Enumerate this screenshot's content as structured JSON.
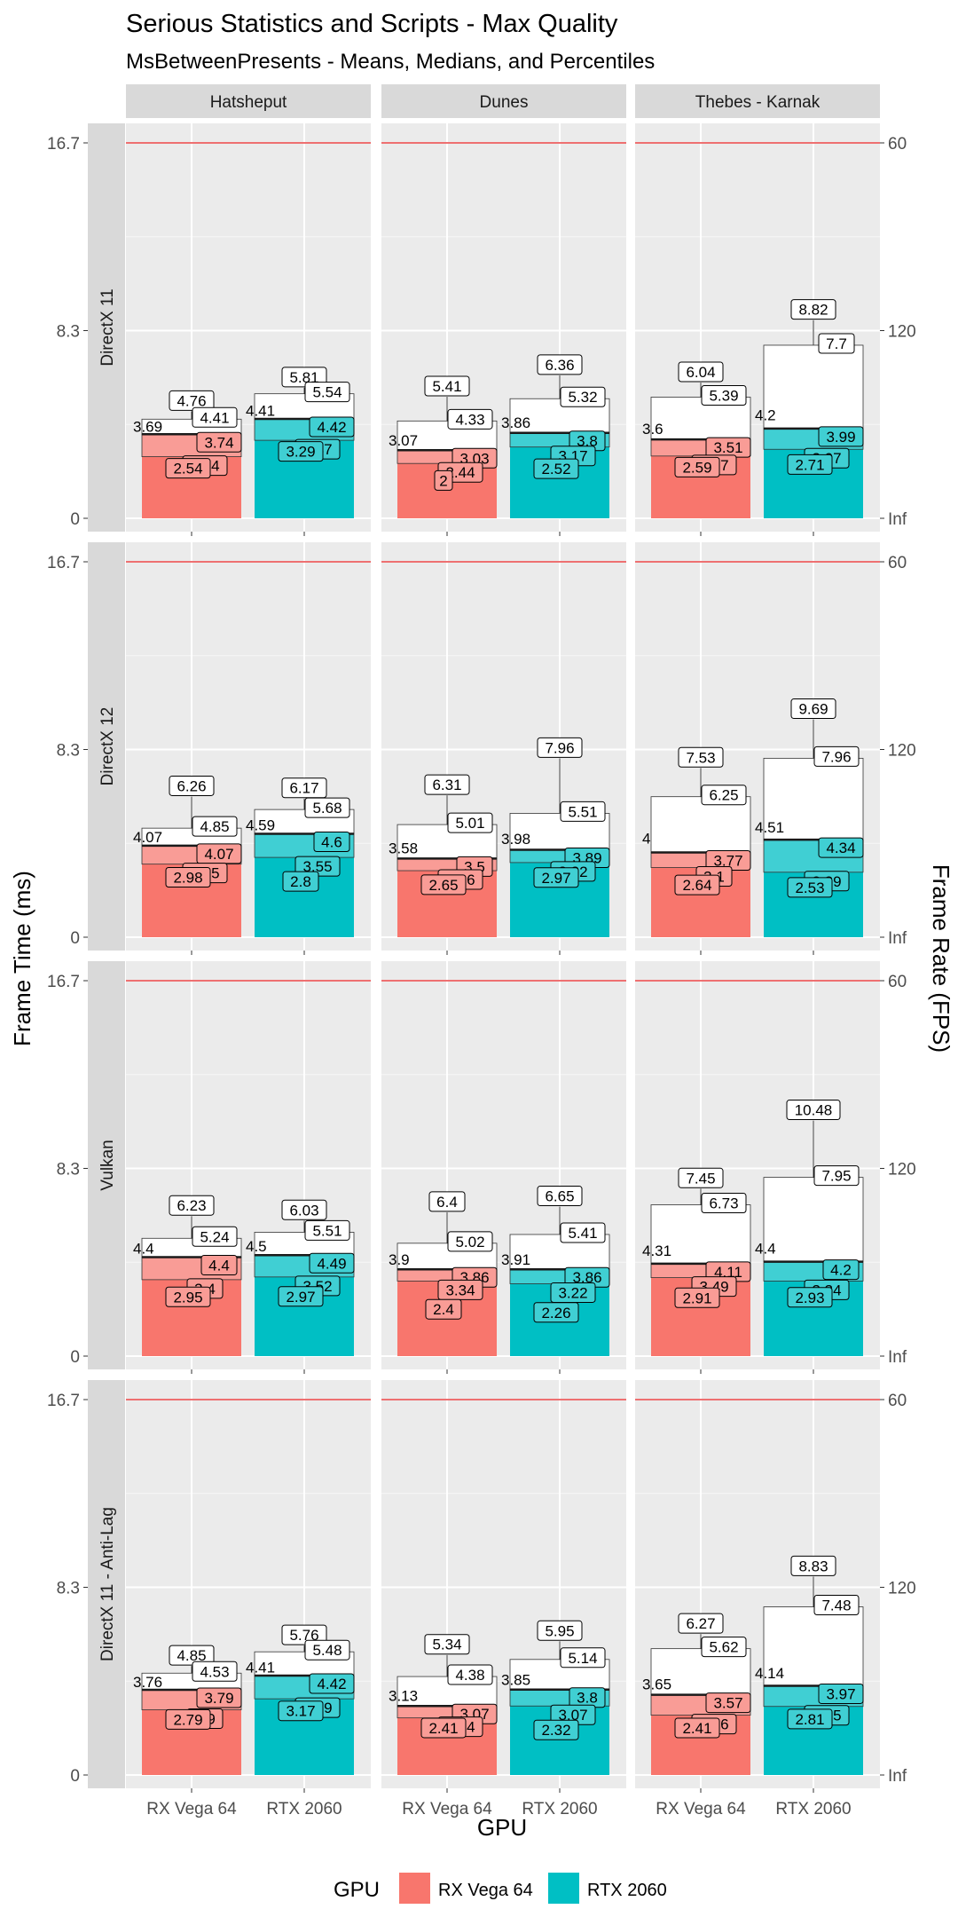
{
  "title": "Serious Statistics and Scripts - Max Quality",
  "subtitle": "MsBetweenPresents - Means, Medians, and Percentiles",
  "chart_data": {
    "type": "bar",
    "facet_columns": [
      "Hatsheput",
      "Dunes",
      "Thebes - Karnak"
    ],
    "facet_rows": [
      "DirectX 11",
      "DirectX 12",
      "Vulkan",
      "DirectX 11 - Anti-Lag"
    ],
    "categories": [
      "RX Vega 64",
      "RTX 2060"
    ],
    "xlabel": "GPU",
    "ylabel": "Frame Time (ms)",
    "y2label": "Frame Rate (FPS)",
    "ylim": [
      0,
      16.7
    ],
    "y_ticks": [
      "0",
      "8.3",
      "16.7"
    ],
    "y2_ticks": [
      "Inf",
      "120",
      "60"
    ],
    "reference_line": 16.7,
    "legend": {
      "title": "GPU",
      "position": "bottom",
      "entries": [
        {
          "name": "RX Vega 64",
          "color": "#F8766D"
        },
        {
          "name": "RTX 2060",
          "color": "#00BFC4"
        }
      ]
    },
    "panels": [
      {
        "row": "DirectX 11",
        "column": "Hatsheput",
        "bars": [
          {
            "gpu": "RX Vega 64",
            "mean": 3.69,
            "median": 3.74,
            "p_low": 2.54,
            "box_low": 2.74,
            "box_high": 4.41,
            "whisker_high": 4.76
          },
          {
            "gpu": "RTX 2060",
            "mean": 4.41,
            "median": 4.42,
            "p_low": 3.29,
            "box_low": 3.47,
            "box_high": 5.54,
            "whisker_high": 5.81
          }
        ]
      },
      {
        "row": "DirectX 11",
        "column": "Dunes",
        "bars": [
          {
            "gpu": "RX Vega 64",
            "mean": 3.07,
            "median": 3.03,
            "p_low": 2,
            "box_low": 2.44,
            "box_high": 4.33,
            "whisker_high": 5.41
          },
          {
            "gpu": "RTX 2060",
            "mean": 3.86,
            "median": 3.8,
            "p_low": 2.52,
            "box_low": 3.17,
            "box_high": 5.32,
            "whisker_high": 6.36
          }
        ]
      },
      {
        "row": "DirectX 11",
        "column": "Thebes - Karnak",
        "bars": [
          {
            "gpu": "RX Vega 64",
            "mean": 3.6,
            "median": 3.51,
            "p_low": 2.59,
            "box_low": 2.77,
            "box_high": 5.39,
            "whisker_high": 6.04
          },
          {
            "gpu": "RTX 2060",
            "mean": 4.2,
            "median": 3.99,
            "p_low": 2.71,
            "box_low": 3.07,
            "box_high": 7.7,
            "whisker_high": 8.82
          }
        ]
      },
      {
        "row": "DirectX 12",
        "column": "Hatsheput",
        "bars": [
          {
            "gpu": "RX Vega 64",
            "mean": 4.07,
            "median": 4.07,
            "p_low": 2.98,
            "box_low": 3.25,
            "box_high": 4.85,
            "whisker_high": 6.26
          },
          {
            "gpu": "RTX 2060",
            "mean": 4.59,
            "median": 4.6,
            "p_low": 2.8,
            "box_low": 3.55,
            "box_high": 5.68,
            "whisker_high": 6.17
          }
        ]
      },
      {
        "row": "DirectX 12",
        "column": "Dunes",
        "bars": [
          {
            "gpu": "RX Vega 64",
            "mean": 3.58,
            "median": 3.5,
            "p_low": 2.65,
            "box_low": 2.96,
            "box_high": 5.01,
            "whisker_high": 6.31
          },
          {
            "gpu": "RTX 2060",
            "mean": 3.98,
            "median": 3.89,
            "p_low": 2.97,
            "box_low": 3.32,
            "box_high": 5.51,
            "whisker_high": 7.96
          }
        ]
      },
      {
        "row": "DirectX 12",
        "column": "Thebes - Karnak",
        "bars": [
          {
            "gpu": "RX Vega 64",
            "mean": 4,
            "median": 3.77,
            "p_low": 2.64,
            "box_low": 3.1,
            "box_high": 6.25,
            "whisker_high": 7.53
          },
          {
            "gpu": "RTX 2060",
            "mean": 4.51,
            "median": 4.34,
            "p_low": 2.53,
            "box_low": 2.89,
            "box_high": 7.96,
            "whisker_high": 9.69
          }
        ]
      },
      {
        "row": "Vulkan",
        "column": "Hatsheput",
        "bars": [
          {
            "gpu": "RX Vega 64",
            "mean": 4.4,
            "median": 4.4,
            "p_low": 2.95,
            "box_low": 3.4,
            "box_high": 5.24,
            "whisker_high": 6.23
          },
          {
            "gpu": "RTX 2060",
            "mean": 4.5,
            "median": 4.49,
            "p_low": 2.97,
            "box_low": 3.52,
            "box_high": 5.51,
            "whisker_high": 6.03
          }
        ]
      },
      {
        "row": "Vulkan",
        "column": "Dunes",
        "bars": [
          {
            "gpu": "RX Vega 64",
            "mean": 3.9,
            "median": 3.86,
            "p_low": 2.4,
            "box_low": 3.34,
            "box_high": 5.02,
            "whisker_high": 6.4
          },
          {
            "gpu": "RTX 2060",
            "mean": 3.91,
            "median": 3.86,
            "p_low": 2.26,
            "box_low": 3.22,
            "box_high": 5.41,
            "whisker_high": 6.65
          }
        ]
      },
      {
        "row": "Vulkan",
        "column": "Thebes - Karnak",
        "bars": [
          {
            "gpu": "RX Vega 64",
            "mean": 4.31,
            "median": 4.11,
            "p_low": 2.91,
            "box_low": 3.49,
            "box_high": 6.73,
            "whisker_high": 7.45
          },
          {
            "gpu": "RTX 2060",
            "mean": 4.4,
            "median": 4.2,
            "p_low": 2.93,
            "box_low": 3.34,
            "box_high": 7.95,
            "whisker_high": 10.48
          }
        ]
      },
      {
        "row": "DirectX 11 - Anti-Lag",
        "column": "Hatsheput",
        "bars": [
          {
            "gpu": "RX Vega 64",
            "mean": 3.76,
            "median": 3.79,
            "p_low": 2.79,
            "box_low": 2.9,
            "box_high": 4.53,
            "whisker_high": 4.85
          },
          {
            "gpu": "RTX 2060",
            "mean": 4.41,
            "median": 4.42,
            "p_low": 3.17,
            "box_low": 3.39,
            "box_high": 5.48,
            "whisker_high": 5.76
          }
        ]
      },
      {
        "row": "DirectX 11 - Anti-Lag",
        "column": "Dunes",
        "bars": [
          {
            "gpu": "RX Vega 64",
            "mean": 3.13,
            "median": 3.07,
            "p_low": 2.41,
            "box_low": 2.54,
            "box_high": 4.38,
            "whisker_high": 5.34
          },
          {
            "gpu": "RTX 2060",
            "mean": 3.85,
            "median": 3.8,
            "p_low": 2.32,
            "box_low": 3.07,
            "box_high": 5.14,
            "whisker_high": 5.95
          }
        ]
      },
      {
        "row": "DirectX 11 - Anti-Lag",
        "column": "Thebes - Karnak",
        "bars": [
          {
            "gpu": "RX Vega 64",
            "mean": 3.65,
            "median": 3.57,
            "p_low": 2.41,
            "box_low": 2.66,
            "box_high": 5.62,
            "whisker_high": 6.27
          },
          {
            "gpu": "RTX 2060",
            "mean": 4.14,
            "median": 3.97,
            "p_low": 2.81,
            "box_low": 3.05,
            "box_high": 7.48,
            "whisker_high": 8.83
          }
        ]
      }
    ]
  }
}
